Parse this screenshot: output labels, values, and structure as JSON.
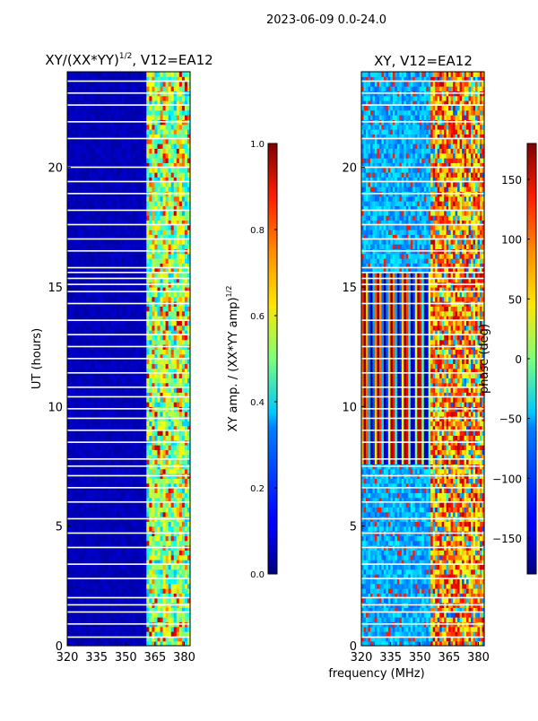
{
  "figure": {
    "suptitle": "2023-06-09 0.0-24.0",
    "shared_xlabel": "frequency (MHz)"
  },
  "chart_data": [
    {
      "type": "heatmap",
      "title": "XY/(XX*YY)",
      "title_sup": "1/2",
      "title_suffix": ", V12=EA12",
      "xlabel": "",
      "ylabel": "UT (hours)",
      "xlim": [
        320,
        383
      ],
      "ylim": [
        0,
        24
      ],
      "xticks": [
        320,
        335,
        350,
        365,
        380
      ],
      "yticks": [
        0,
        5,
        10,
        15,
        20
      ],
      "colorbar": {
        "label": "XY amp. / (XX*YY amp)",
        "label_sup": "1/2",
        "range": [
          0.0,
          1.0
        ],
        "ticks": [
          "0.0",
          "0.2",
          "0.4",
          "0.6",
          "0.8",
          "1.0"
        ],
        "colormap": "jet"
      },
      "regions": [
        {
          "freq": [
            320,
            360
          ],
          "value": 0.03
        },
        {
          "freq": [
            360,
            383
          ],
          "value": 0.45
        }
      ]
    },
    {
      "type": "heatmap",
      "title": "XY, V12=EA12",
      "xlabel": "frequency (MHz)",
      "ylabel": "",
      "xlim": [
        320,
        383
      ],
      "ylim": [
        0,
        24
      ],
      "xticks": [
        320,
        335,
        350,
        365,
        380
      ],
      "yticks": [
        0,
        5,
        10,
        15,
        20
      ],
      "colorbar": {
        "label": "phase (deg)",
        "range": [
          -180,
          180
        ],
        "ticks": [
          "−150",
          "−100",
          "−50",
          "0",
          "50",
          "100",
          "150"
        ],
        "tick_values": [
          -150,
          -100,
          -50,
          0,
          50,
          100,
          150
        ],
        "colormap": "jet"
      }
    }
  ]
}
